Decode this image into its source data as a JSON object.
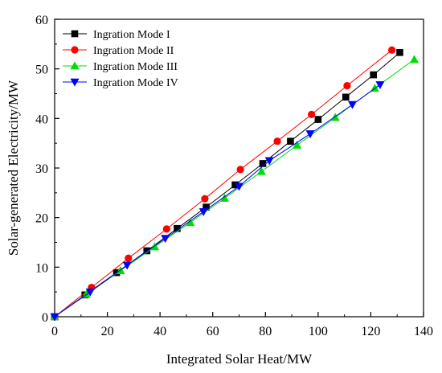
{
  "chart_data": {
    "type": "line",
    "title": "",
    "xlabel": "Integrated Solar Heat/MW",
    "ylabel": "Solar-generated Electricity/MW",
    "xlim": [
      0,
      140
    ],
    "ylim": [
      0,
      60
    ],
    "xticks": [
      "0",
      "20",
      "40",
      "60",
      "80",
      "100",
      "120",
      "140"
    ],
    "yticks": [
      "0",
      "10",
      "20",
      "30",
      "40",
      "50",
      "60"
    ],
    "grid": false,
    "legend": "top-left",
    "series": [
      {
        "name": "Ingration Mode I",
        "color": "#000000",
        "marker": "square",
        "x": [
          0,
          11.5,
          23.5,
          35,
          46.5,
          57.5,
          68.5,
          79,
          89.5,
          100,
          110.5,
          121,
          131
        ],
        "y": [
          0,
          4.4,
          8.9,
          13.3,
          17.8,
          22.1,
          26.6,
          30.9,
          35.4,
          39.8,
          44.3,
          48.8,
          53.3
        ]
      },
      {
        "name": "Ingration Mode II",
        "color": "#ff0000",
        "marker": "circle",
        "x": [
          0,
          14,
          28,
          42.5,
          57,
          70.5,
          84.5,
          97.5,
          111,
          128
        ],
        "y": [
          0,
          5.9,
          11.8,
          17.7,
          23.8,
          29.7,
          35.4,
          40.8,
          46.6,
          53.8
        ]
      },
      {
        "name": "Ingration Mode III",
        "color": "#00dd00",
        "marker": "triangle-up",
        "x": [
          0,
          12,
          25,
          38,
          51.5,
          64.5,
          78.5,
          92,
          106.5,
          121.5,
          136.5
        ],
        "y": [
          0,
          4.5,
          9.3,
          14.1,
          19.0,
          23.9,
          29.3,
          34.6,
          40.2,
          46.1,
          51.9
        ]
      },
      {
        "name": "Ingration Mode IV",
        "color": "#0000ff",
        "marker": "triangle-down",
        "x": [
          0,
          13.5,
          27.5,
          42,
          56.5,
          70,
          81.5,
          97,
          113,
          123.5
        ],
        "y": [
          0,
          5.0,
          10.4,
          15.8,
          21.2,
          26.3,
          31.5,
          36.9,
          42.8,
          46.8
        ]
      }
    ]
  }
}
